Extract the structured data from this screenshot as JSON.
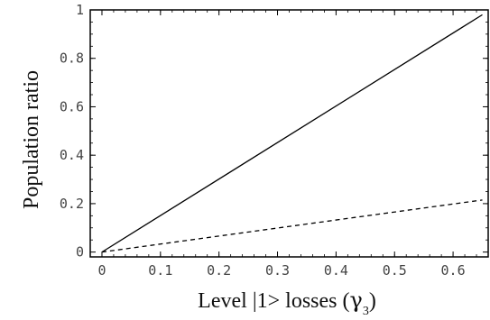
{
  "chart_data": {
    "type": "line",
    "xlabel_prefix": "Level ",
    "xlabel_ket": "|1>",
    "xlabel_mid": " losses (",
    "xlabel_greek": "γ",
    "xlabel_sub": "3",
    "xlabel_suffix": ")",
    "ylabel": "Population ratio",
    "xlim": [
      -0.02,
      0.66
    ],
    "ylim": [
      -0.02,
      1.0
    ],
    "x_ticks": [
      0,
      0.1,
      0.2,
      0.3,
      0.4,
      0.5,
      0.6
    ],
    "x_tick_labels": [
      "0",
      "0.1",
      "0.2",
      "0.3",
      "0.4",
      "0.5",
      "0.6"
    ],
    "y_ticks": [
      0,
      0.2,
      0.4,
      0.6,
      0.8,
      1
    ],
    "y_tick_labels": [
      "0",
      "0.2",
      "0.4",
      "0.6",
      "0.8",
      "1"
    ],
    "grid": false,
    "series": [
      {
        "style": "solid",
        "color": "#000000",
        "x": [
          0,
          0.65
        ],
        "y": [
          0,
          0.98
        ]
      },
      {
        "style": "dashed",
        "color": "#000000",
        "x": [
          0,
          0.65
        ],
        "y": [
          0,
          0.215
        ]
      }
    ]
  }
}
